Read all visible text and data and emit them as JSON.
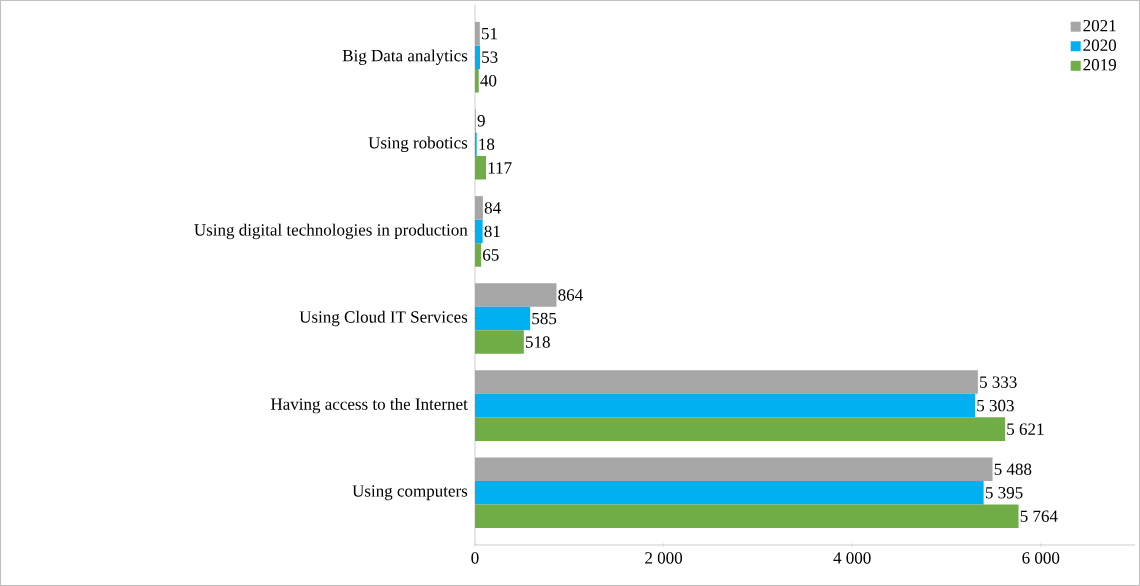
{
  "chart_data": {
    "type": "bar",
    "orientation": "horizontal",
    "categories": [
      "Big Data analytics",
      "Using robotics",
      "Using digital technologies in production",
      "Using Cloud IT Services",
      "Having access to the Internet",
      "Using computers"
    ],
    "series": [
      {
        "name": "2021",
        "color": "#a6a6a6",
        "values": [
          51,
          9,
          84,
          864,
          5333,
          5488
        ],
        "value_labels": [
          "51",
          "9",
          "84",
          "864",
          "5 333",
          "5 488"
        ]
      },
      {
        "name": "2020",
        "color": "#00b0f0",
        "values": [
          53,
          18,
          81,
          585,
          5303,
          5395
        ],
        "value_labels": [
          "53",
          "18",
          "81",
          "585",
          "5 303",
          "5 395"
        ]
      },
      {
        "name": "2019",
        "color": "#70ad47",
        "values": [
          40,
          117,
          65,
          518,
          5621,
          5764
        ],
        "value_labels": [
          "40",
          "117",
          "65",
          "518",
          "5 621",
          "5 764"
        ]
      }
    ],
    "xlim": [
      0,
      7000
    ],
    "xticks": [
      0,
      {
        "value": 2000,
        "label": "2 000"
      },
      {
        "value": 4000,
        "label": "4 000"
      },
      {
        "value": 6000,
        "label": "6 000"
      }
    ],
    "legend": "top right"
  }
}
